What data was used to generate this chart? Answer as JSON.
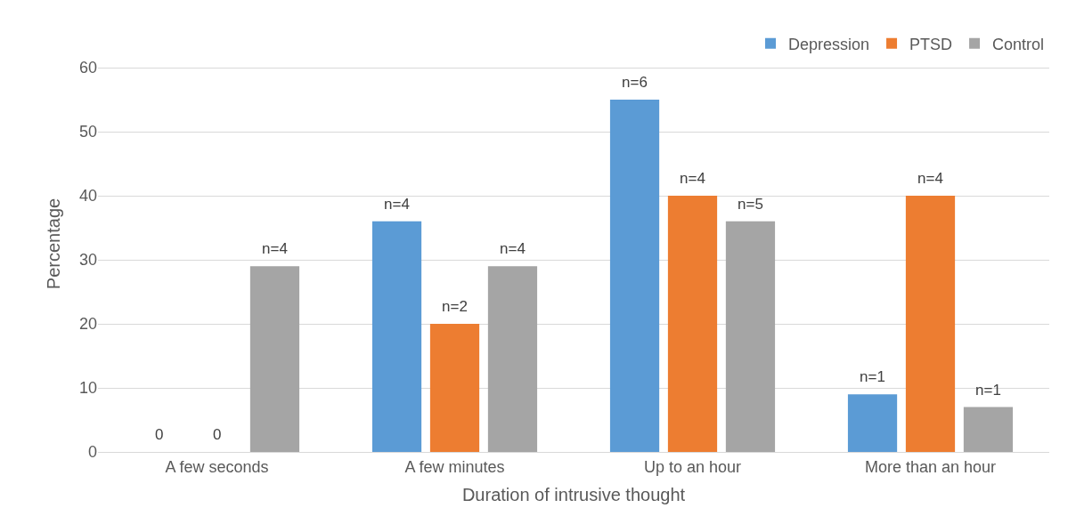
{
  "chart_data": {
    "type": "bar",
    "xlabel": "Duration of intrusive thought",
    "ylabel": "Percentage",
    "categories": [
      "A few seconds",
      "A few minutes",
      "Up to an hour",
      "More than an hour"
    ],
    "series": [
      {
        "name": "Depression",
        "color": "#5b9bd5",
        "values": [
          0,
          36,
          55,
          9
        ]
      },
      {
        "name": "PTSD",
        "color": "#ed7d31",
        "values": [
          0,
          20,
          40,
          40
        ]
      },
      {
        "name": "Control",
        "color": "#a5a5a5",
        "values": [
          29,
          29,
          36,
          7
        ]
      }
    ],
    "annotations": [
      "0",
      "0",
      "n=4",
      "n=4",
      "n=2",
      "n=4",
      "n=6",
      "n=4",
      "n=5",
      "n=1",
      "n=4",
      "n=1"
    ],
    "ylim": [
      0,
      65
    ],
    "yticks": [
      0,
      10,
      20,
      30,
      40,
      50,
      60
    ],
    "grid": "y",
    "legend": "top right"
  }
}
